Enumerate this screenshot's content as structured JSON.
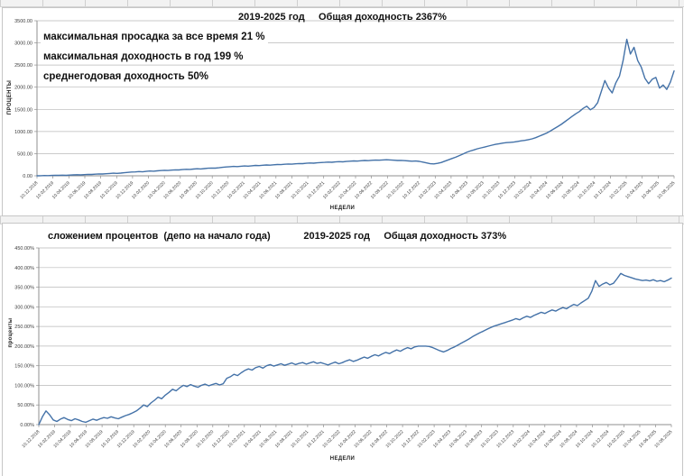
{
  "accent_color": "#4472A8",
  "chart_data": [
    {
      "type": "line",
      "title": "2019-2025 год     Общая доходность 2367%",
      "annotations": [
        "максимальная просадка за все время 21 %",
        "максимальная доходность в год 199 %",
        "среднегодовая доходность 50%"
      ],
      "ylabel": "ПРОЦЕНТЫ",
      "xlabel": "НЕДЕЛИ",
      "ylim": [
        0,
        3500
      ],
      "grid": true,
      "legend": null,
      "line_color": "#4472A8",
      "y_tick_labels": [
        "3500.00",
        "3000.00",
        "2500.00",
        "2000.00",
        "1500.00",
        "1000.00",
        "500.00",
        "0.00"
      ],
      "x_labels": [
        "10.12.2018",
        "10.02.2019",
        "10.04.2019",
        "10.06.2019",
        "10.08.2019",
        "10.10.2019",
        "10.12.2019",
        "10.02.2020",
        "10.04.2020",
        "10.06.2020",
        "10.08.2020",
        "10.10.2020",
        "10.12.2020",
        "10.02.2021",
        "10.04.2021",
        "10.06.2021",
        "10.08.2021",
        "10.10.2021",
        "10.12.2021",
        "10.02.2022",
        "10.04.2022",
        "10.06.2022",
        "10.08.2022",
        "10.10.2022",
        "10.12.2022",
        "10.02.2023",
        "10.04.2023",
        "10.06.2023",
        "10.08.2023",
        "10.10.2023",
        "10.12.2023",
        "10.02.2024",
        "10.04.2024",
        "10.06.2024",
        "10.08.2024",
        "10.10.2024",
        "10.12.2024",
        "10.02.2025",
        "10.04.2025",
        "10.06.2025",
        "10.08.2025"
      ],
      "values": [
        0,
        3,
        6,
        4,
        8,
        12,
        10,
        14,
        11,
        16,
        20,
        24,
        21,
        27,
        32,
        30,
        36,
        42,
        40,
        46,
        52,
        58,
        55,
        62,
        70,
        78,
        85,
        88,
        95,
        90,
        100,
        108,
        104,
        112,
        118,
        124,
        120,
        128,
        135,
        132,
        140,
        147,
        144,
        152,
        158,
        155,
        163,
        170,
        176,
        172,
        182,
        192,
        200,
        205,
        212,
        208,
        216,
        222,
        218,
        226,
        233,
        230,
        238,
        244,
        240,
        248,
        255,
        252,
        260,
        266,
        263,
        270,
        277,
        274,
        282,
        288,
        285,
        293,
        300,
        304,
        310,
        306,
        314,
        320,
        316,
        324,
        330,
        336,
        332,
        340,
        346,
        342,
        350,
        355,
        352,
        358,
        362,
        358,
        352,
        345,
        348,
        342,
        336,
        330,
        333,
        325,
        310,
        290,
        272,
        268,
        280,
        300,
        330,
        360,
        390,
        420,
        455,
        490,
        530,
        560,
        585,
        610,
        630,
        650,
        672,
        692,
        710,
        725,
        738,
        748,
        755,
        762,
        775,
        790,
        800,
        815,
        835,
        860,
        895,
        930,
        965,
        1010,
        1060,
        1110,
        1160,
        1220,
        1280,
        1340,
        1400,
        1450,
        1520,
        1570,
        1490,
        1540,
        1650,
        1900,
        2150,
        1980,
        1870,
        2100,
        2250,
        2600,
        3080,
        2750,
        2900,
        2600,
        2450,
        2200,
        2080,
        2180,
        2220,
        1980,
        2050,
        1950,
        2120,
        2367
      ]
    },
    {
      "type": "line",
      "title": "сложением процентов  (депо на начало года)            2019-2025 год     Общая доходность 373%",
      "ylabel": "проценты",
      "xlabel": "НЕДЕЛИ",
      "ylim": [
        0,
        450
      ],
      "grid": true,
      "legend": null,
      "line_color": "#4472A8",
      "y_tick_labels": [
        "450.00%",
        "400.00%",
        "350.00%",
        "300.00%",
        "250.00%",
        "200.00%",
        "150.00%",
        "100.00%",
        "50.00%",
        "0.00%"
      ],
      "x_labels": [
        "10.12.2018",
        "10.02.2019",
        "10.04.2019",
        "10.06.2019",
        "10.08.2019",
        "10.10.2019",
        "10.12.2019",
        "10.02.2020",
        "10.04.2020",
        "10.06.2020",
        "10.08.2020",
        "10.10.2020",
        "10.12.2020",
        "10.02.2021",
        "10.04.2021",
        "10.06.2021",
        "10.08.2021",
        "10.10.2021",
        "10.12.2021",
        "10.02.2022",
        "10.04.2022",
        "10.06.2022",
        "10.08.2022",
        "10.10.2022",
        "10.12.2022",
        "10.02.2023",
        "10.04.2023",
        "10.06.2023",
        "10.08.2023",
        "10.10.2023",
        "10.12.2023",
        "10.02.2024",
        "10.04.2024",
        "10.06.2024",
        "10.08.2024",
        "10.10.2024",
        "10.12.2024",
        "10.02.2025",
        "10.04.2025",
        "10.06.2025",
        "10.08.2025"
      ],
      "values": [
        0,
        20,
        35,
        25,
        12,
        8,
        14,
        18,
        13,
        10,
        15,
        12,
        8,
        6,
        10,
        14,
        11,
        15,
        18,
        16,
        20,
        17,
        15,
        19,
        23,
        26,
        30,
        35,
        42,
        50,
        46,
        55,
        62,
        70,
        66,
        75,
        82,
        90,
        86,
        94,
        100,
        97,
        102,
        98,
        95,
        100,
        103,
        99,
        102,
        105,
        101,
        104,
        118,
        122,
        128,
        125,
        132,
        138,
        142,
        139,
        145,
        148,
        144,
        150,
        153,
        149,
        152,
        155,
        151,
        154,
        157,
        153,
        156,
        158,
        154,
        157,
        160,
        156,
        158,
        155,
        152,
        156,
        159,
        155,
        158,
        162,
        165,
        161,
        164,
        168,
        172,
        169,
        174,
        178,
        175,
        180,
        184,
        181,
        186,
        190,
        187,
        192,
        196,
        193,
        198,
        200,
        200,
        200,
        199,
        196,
        192,
        188,
        185,
        189,
        194,
        198,
        203,
        208,
        213,
        218,
        224,
        229,
        234,
        238,
        243,
        247,
        251,
        254,
        257,
        260,
        263,
        266,
        270,
        267,
        272,
        276,
        273,
        278,
        282,
        286,
        283,
        288,
        292,
        289,
        294,
        298,
        295,
        301,
        306,
        303,
        310,
        316,
        322,
        340,
        367,
        352,
        358,
        362,
        356,
        360,
        372,
        385,
        380,
        377,
        374,
        371,
        369,
        367,
        368,
        366,
        369,
        365,
        367,
        364,
        368,
        373
      ]
    }
  ]
}
